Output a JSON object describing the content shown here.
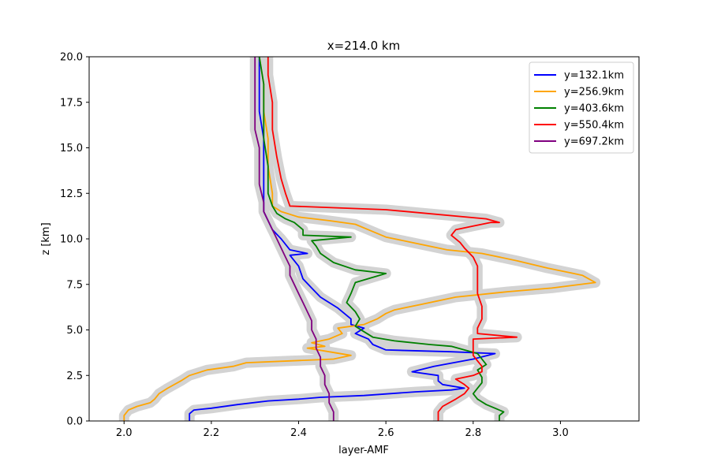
{
  "chart_data": {
    "type": "line",
    "title": "x=214.0 km",
    "xlabel": "layer-AMF",
    "ylabel": "z [km]",
    "xlim": [
      1.92,
      3.18
    ],
    "ylim": [
      0.0,
      20.0
    ],
    "xticks": [
      2.0,
      2.2,
      2.4,
      2.6,
      2.8,
      3.0
    ],
    "xtick_labels": [
      "2.0",
      "2.2",
      "2.4",
      "2.6",
      "2.8",
      "3.0"
    ],
    "yticks": [
      0.0,
      2.5,
      5.0,
      7.5,
      10.0,
      12.5,
      15.0,
      17.5,
      20.0
    ],
    "ytick_labels": [
      "0.0",
      "2.5",
      "5.0",
      "7.5",
      "10.0",
      "12.5",
      "15.0",
      "17.5",
      "20.0"
    ],
    "grid": false,
    "legend_position": "top-right",
    "uncertainty_band_color": "#d3d3d3",
    "series": [
      {
        "name": "y=132.1km",
        "color": "#0000ff",
        "points": [
          [
            2.15,
            0.0
          ],
          [
            2.15,
            0.4
          ],
          [
            2.16,
            0.6
          ],
          [
            2.2,
            0.7
          ],
          [
            2.26,
            0.9
          ],
          [
            2.33,
            1.1
          ],
          [
            2.4,
            1.2
          ],
          [
            2.45,
            1.3
          ],
          [
            2.55,
            1.4
          ],
          [
            2.67,
            1.6
          ],
          [
            2.75,
            1.7
          ],
          [
            2.78,
            1.8
          ],
          [
            2.73,
            2.0
          ],
          [
            2.72,
            2.2
          ],
          [
            2.72,
            2.5
          ],
          [
            2.66,
            2.7
          ],
          [
            2.71,
            3.0
          ],
          [
            2.8,
            3.4
          ],
          [
            2.85,
            3.7
          ],
          [
            2.75,
            3.8
          ],
          [
            2.6,
            3.9
          ],
          [
            2.57,
            4.2
          ],
          [
            2.56,
            4.5
          ],
          [
            2.53,
            4.8
          ],
          [
            2.55,
            5.1
          ],
          [
            2.52,
            5.3
          ],
          [
            2.52,
            5.6
          ],
          [
            2.49,
            6.2
          ],
          [
            2.45,
            6.8
          ],
          [
            2.43,
            7.3
          ],
          [
            2.41,
            7.8
          ],
          [
            2.4,
            8.5
          ],
          [
            2.38,
            9.1
          ],
          [
            2.42,
            9.2
          ],
          [
            2.38,
            9.4
          ],
          [
            2.36,
            10.0
          ],
          [
            2.34,
            10.5
          ],
          [
            2.33,
            11.0
          ],
          [
            2.32,
            11.5
          ],
          [
            2.32,
            12.5
          ],
          [
            2.32,
            14.0
          ],
          [
            2.32,
            15.5
          ],
          [
            2.31,
            17.0
          ],
          [
            2.31,
            18.5
          ],
          [
            2.31,
            20.0
          ]
        ]
      },
      {
        "name": "y=256.9km",
        "color": "#ffa500",
        "points": [
          [
            2.0,
            0.0
          ],
          [
            2.0,
            0.3
          ],
          [
            2.01,
            0.6
          ],
          [
            2.03,
            0.8
          ],
          [
            2.06,
            1.0
          ],
          [
            2.07,
            1.2
          ],
          [
            2.08,
            1.5
          ],
          [
            2.1,
            1.8
          ],
          [
            2.13,
            2.2
          ],
          [
            2.15,
            2.5
          ],
          [
            2.19,
            2.8
          ],
          [
            2.25,
            3.0
          ],
          [
            2.28,
            3.2
          ],
          [
            2.38,
            3.3
          ],
          [
            2.48,
            3.4
          ],
          [
            2.52,
            3.6
          ],
          [
            2.47,
            3.8
          ],
          [
            2.42,
            4.0
          ],
          [
            2.46,
            4.1
          ],
          [
            2.43,
            4.3
          ],
          [
            2.47,
            4.5
          ],
          [
            2.5,
            4.8
          ],
          [
            2.49,
            5.1
          ],
          [
            2.55,
            5.3
          ],
          [
            2.58,
            5.6
          ],
          [
            2.6,
            5.9
          ],
          [
            2.62,
            6.1
          ],
          [
            2.68,
            6.4
          ],
          [
            2.76,
            6.8
          ],
          [
            2.88,
            7.1
          ],
          [
            2.98,
            7.3
          ],
          [
            3.08,
            7.6
          ],
          [
            3.05,
            8.0
          ],
          [
            3.03,
            8.1
          ],
          [
            2.97,
            8.4
          ],
          [
            2.9,
            8.8
          ],
          [
            2.82,
            9.2
          ],
          [
            2.74,
            9.4
          ],
          [
            2.66,
            9.8
          ],
          [
            2.6,
            10.1
          ],
          [
            2.56,
            10.5
          ],
          [
            2.53,
            10.8
          ],
          [
            2.47,
            11.0
          ],
          [
            2.4,
            11.2
          ],
          [
            2.36,
            11.5
          ],
          [
            2.34,
            11.8
          ],
          [
            2.34,
            12.5
          ],
          [
            2.33,
            14.0
          ],
          [
            2.33,
            15.5
          ],
          [
            2.32,
            17.0
          ],
          [
            2.32,
            18.5
          ],
          [
            2.31,
            20.0
          ]
        ]
      },
      {
        "name": "y=403.6km",
        "color": "#008000",
        "points": [
          [
            2.86,
            0.0
          ],
          [
            2.86,
            0.3
          ],
          [
            2.87,
            0.5
          ],
          [
            2.85,
            0.7
          ],
          [
            2.83,
            0.9
          ],
          [
            2.81,
            1.2
          ],
          [
            2.8,
            1.5
          ],
          [
            2.81,
            1.8
          ],
          [
            2.82,
            2.1
          ],
          [
            2.82,
            2.4
          ],
          [
            2.81,
            2.8
          ],
          [
            2.83,
            3.1
          ],
          [
            2.82,
            3.4
          ],
          [
            2.81,
            3.7
          ],
          [
            2.78,
            3.9
          ],
          [
            2.75,
            4.1
          ],
          [
            2.7,
            4.2
          ],
          [
            2.62,
            4.4
          ],
          [
            2.57,
            4.6
          ],
          [
            2.55,
            4.9
          ],
          [
            2.53,
            5.2
          ],
          [
            2.54,
            5.6
          ],
          [
            2.53,
            6.0
          ],
          [
            2.51,
            6.5
          ],
          [
            2.52,
            7.0
          ],
          [
            2.53,
            7.6
          ],
          [
            2.6,
            8.1
          ],
          [
            2.53,
            8.3
          ],
          [
            2.48,
            8.7
          ],
          [
            2.45,
            9.2
          ],
          [
            2.44,
            9.6
          ],
          [
            2.43,
            9.9
          ],
          [
            2.52,
            10.1
          ],
          [
            2.41,
            10.2
          ],
          [
            2.41,
            10.5
          ],
          [
            2.39,
            10.9
          ],
          [
            2.37,
            11.1
          ],
          [
            2.35,
            11.4
          ],
          [
            2.34,
            11.8
          ],
          [
            2.33,
            12.5
          ],
          [
            2.33,
            14.0
          ],
          [
            2.32,
            15.5
          ],
          [
            2.32,
            17.0
          ],
          [
            2.32,
            18.5
          ],
          [
            2.31,
            20.0
          ]
        ]
      },
      {
        "name": "y=550.4km",
        "color": "#ff0000",
        "points": [
          [
            2.72,
            0.0
          ],
          [
            2.72,
            0.5
          ],
          [
            2.73,
            0.8
          ],
          [
            2.76,
            1.2
          ],
          [
            2.78,
            1.5
          ],
          [
            2.79,
            1.8
          ],
          [
            2.78,
            2.0
          ],
          [
            2.76,
            2.3
          ],
          [
            2.8,
            2.5
          ],
          [
            2.82,
            2.7
          ],
          [
            2.82,
            3.0
          ],
          [
            2.81,
            3.3
          ],
          [
            2.8,
            3.6
          ],
          [
            2.8,
            4.0
          ],
          [
            2.8,
            4.5
          ],
          [
            2.9,
            4.6
          ],
          [
            2.81,
            4.8
          ],
          [
            2.81,
            5.1
          ],
          [
            2.82,
            5.6
          ],
          [
            2.82,
            6.3
          ],
          [
            2.81,
            7.0
          ],
          [
            2.81,
            7.8
          ],
          [
            2.81,
            8.5
          ],
          [
            2.8,
            9.0
          ],
          [
            2.78,
            9.5
          ],
          [
            2.77,
            9.8
          ],
          [
            2.75,
            10.2
          ],
          [
            2.76,
            10.5
          ],
          [
            2.8,
            10.7
          ],
          [
            2.84,
            10.9
          ],
          [
            2.86,
            10.9
          ],
          [
            2.83,
            11.1
          ],
          [
            2.6,
            11.6
          ],
          [
            2.38,
            11.8
          ],
          [
            2.37,
            12.5
          ],
          [
            2.36,
            13.3
          ],
          [
            2.35,
            14.5
          ],
          [
            2.34,
            16.0
          ],
          [
            2.34,
            17.5
          ],
          [
            2.33,
            19.0
          ],
          [
            2.33,
            20.0
          ]
        ]
      },
      {
        "name": "y=697.2km",
        "color": "#800080",
        "points": [
          [
            2.48,
            0.0
          ],
          [
            2.48,
            0.5
          ],
          [
            2.47,
            1.0
          ],
          [
            2.47,
            1.5
          ],
          [
            2.46,
            2.0
          ],
          [
            2.46,
            2.5
          ],
          [
            2.45,
            3.0
          ],
          [
            2.45,
            3.5
          ],
          [
            2.44,
            4.0
          ],
          [
            2.44,
            4.5
          ],
          [
            2.43,
            5.0
          ],
          [
            2.43,
            5.5
          ],
          [
            2.42,
            6.0
          ],
          [
            2.41,
            6.5
          ],
          [
            2.4,
            7.0
          ],
          [
            2.39,
            7.5
          ],
          [
            2.38,
            8.0
          ],
          [
            2.38,
            8.5
          ],
          [
            2.37,
            9.0
          ],
          [
            2.36,
            9.5
          ],
          [
            2.35,
            10.0
          ],
          [
            2.34,
            10.5
          ],
          [
            2.33,
            11.0
          ],
          [
            2.32,
            11.5
          ],
          [
            2.32,
            12.0
          ],
          [
            2.31,
            13.0
          ],
          [
            2.31,
            14.0
          ],
          [
            2.31,
            15.0
          ],
          [
            2.3,
            16.0
          ],
          [
            2.3,
            17.0
          ],
          [
            2.3,
            18.0
          ],
          [
            2.3,
            19.0
          ],
          [
            2.3,
            20.0
          ]
        ]
      }
    ]
  }
}
